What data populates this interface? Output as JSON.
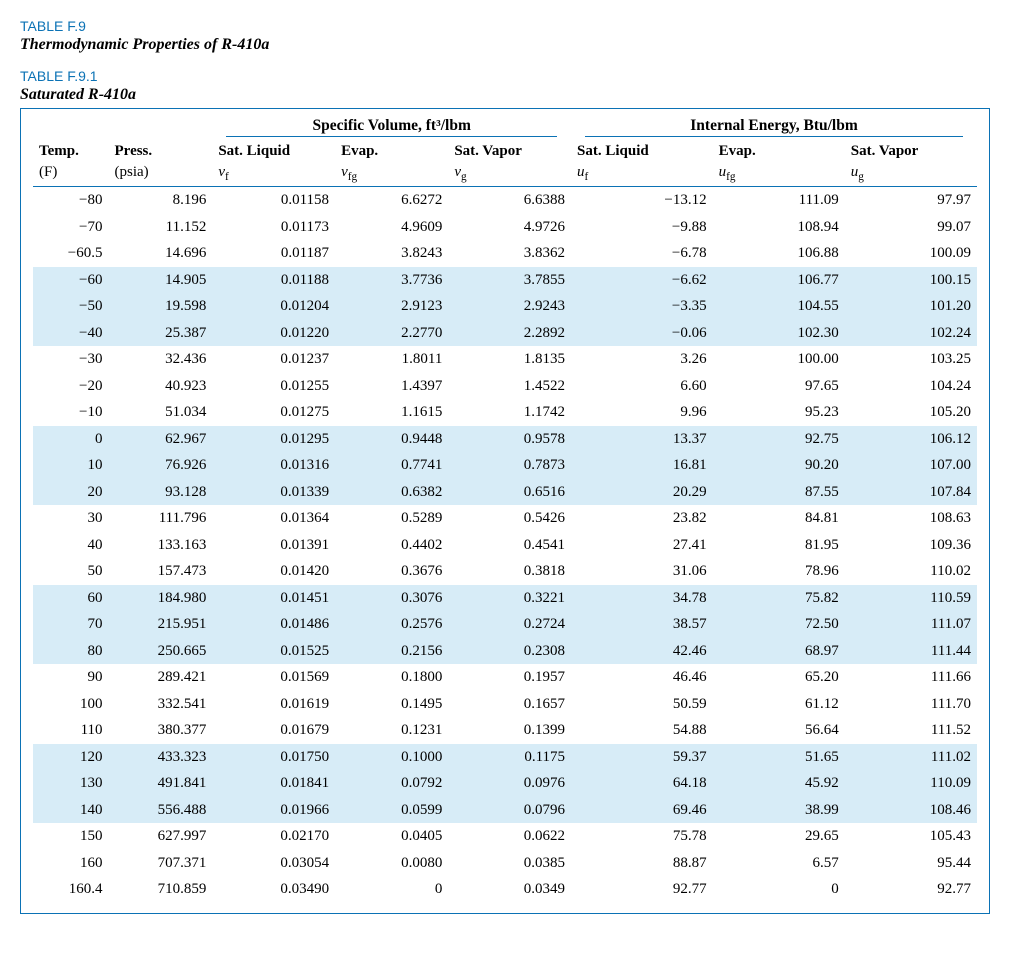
{
  "header": {
    "table_label": "TABLE F.9",
    "table_title": "Thermodynamic Properties of R-410a",
    "sub_label": "TABLE F.9.1",
    "sub_title": "Saturated R-410a"
  },
  "groups": {
    "sv": {
      "title": "Specific Volume, ft³/lbm"
    },
    "ie": {
      "title": "Internal Energy, Btu/lbm"
    }
  },
  "columns": {
    "temp": {
      "top": "Temp.",
      "bot": "(F)"
    },
    "press": {
      "top": "Press.",
      "bot": "(psia)"
    },
    "vf": {
      "top": "Sat. Liquid",
      "sym": "v",
      "sub": "f"
    },
    "vfg": {
      "top": "Evap.",
      "sym": "v",
      "sub": "fg"
    },
    "vg": {
      "top": "Sat. Vapor",
      "sym": "v",
      "sub": "g"
    },
    "uf": {
      "top": "Sat. Liquid",
      "sym": "u",
      "sub": "f"
    },
    "ufg": {
      "top": "Evap.",
      "sym": "u",
      "sub": "fg"
    },
    "ug": {
      "top": "Sat. Vapor",
      "sym": "u",
      "sub": "g"
    }
  },
  "style": {
    "accent": "#0b72b5",
    "band_bg": "#d7ecf7",
    "font_body_pt": 15,
    "font_header_pt": 15.5,
    "band_pattern": "every 3 rows alternating, starting row index 3"
  },
  "rows": [
    {
      "band": false,
      "temp": "−80",
      "press": "8.196",
      "vf": "0.01158",
      "vfg": "6.6272",
      "vg": "6.6388",
      "uf": "−13.12",
      "ufg": "111.09",
      "ug": "97.97"
    },
    {
      "band": false,
      "temp": "−70",
      "press": "11.152",
      "vf": "0.01173",
      "vfg": "4.9609",
      "vg": "4.9726",
      "uf": "−9.88",
      "ufg": "108.94",
      "ug": "99.07"
    },
    {
      "band": false,
      "temp": "−60.5",
      "press": "14.696",
      "vf": "0.01187",
      "vfg": "3.8243",
      "vg": "3.8362",
      "uf": "−6.78",
      "ufg": "106.88",
      "ug": "100.09"
    },
    {
      "band": true,
      "temp": "−60",
      "press": "14.905",
      "vf": "0.01188",
      "vfg": "3.7736",
      "vg": "3.7855",
      "uf": "−6.62",
      "ufg": "106.77",
      "ug": "100.15"
    },
    {
      "band": true,
      "temp": "−50",
      "press": "19.598",
      "vf": "0.01204",
      "vfg": "2.9123",
      "vg": "2.9243",
      "uf": "−3.35",
      "ufg": "104.55",
      "ug": "101.20"
    },
    {
      "band": true,
      "temp": "−40",
      "press": "25.387",
      "vf": "0.01220",
      "vfg": "2.2770",
      "vg": "2.2892",
      "uf": "−0.06",
      "ufg": "102.30",
      "ug": "102.24"
    },
    {
      "band": false,
      "temp": "−30",
      "press": "32.436",
      "vf": "0.01237",
      "vfg": "1.8011",
      "vg": "1.8135",
      "uf": "3.26",
      "ufg": "100.00",
      "ug": "103.25"
    },
    {
      "band": false,
      "temp": "−20",
      "press": "40.923",
      "vf": "0.01255",
      "vfg": "1.4397",
      "vg": "1.4522",
      "uf": "6.60",
      "ufg": "97.65",
      "ug": "104.24"
    },
    {
      "band": false,
      "temp": "−10",
      "press": "51.034",
      "vf": "0.01275",
      "vfg": "1.1615",
      "vg": "1.1742",
      "uf": "9.96",
      "ufg": "95.23",
      "ug": "105.20"
    },
    {
      "band": true,
      "temp": "0",
      "press": "62.967",
      "vf": "0.01295",
      "vfg": "0.9448",
      "vg": "0.9578",
      "uf": "13.37",
      "ufg": "92.75",
      "ug": "106.12"
    },
    {
      "band": true,
      "temp": "10",
      "press": "76.926",
      "vf": "0.01316",
      "vfg": "0.7741",
      "vg": "0.7873",
      "uf": "16.81",
      "ufg": "90.20",
      "ug": "107.00"
    },
    {
      "band": true,
      "temp": "20",
      "press": "93.128",
      "vf": "0.01339",
      "vfg": "0.6382",
      "vg": "0.6516",
      "uf": "20.29",
      "ufg": "87.55",
      "ug": "107.84"
    },
    {
      "band": false,
      "temp": "30",
      "press": "111.796",
      "vf": "0.01364",
      "vfg": "0.5289",
      "vg": "0.5426",
      "uf": "23.82",
      "ufg": "84.81",
      "ug": "108.63"
    },
    {
      "band": false,
      "temp": "40",
      "press": "133.163",
      "vf": "0.01391",
      "vfg": "0.4402",
      "vg": "0.4541",
      "uf": "27.41",
      "ufg": "81.95",
      "ug": "109.36"
    },
    {
      "band": false,
      "temp": "50",
      "press": "157.473",
      "vf": "0.01420",
      "vfg": "0.3676",
      "vg": "0.3818",
      "uf": "31.06",
      "ufg": "78.96",
      "ug": "110.02"
    },
    {
      "band": true,
      "temp": "60",
      "press": "184.980",
      "vf": "0.01451",
      "vfg": "0.3076",
      "vg": "0.3221",
      "uf": "34.78",
      "ufg": "75.82",
      "ug": "110.59"
    },
    {
      "band": true,
      "temp": "70",
      "press": "215.951",
      "vf": "0.01486",
      "vfg": "0.2576",
      "vg": "0.2724",
      "uf": "38.57",
      "ufg": "72.50",
      "ug": "111.07"
    },
    {
      "band": true,
      "temp": "80",
      "press": "250.665",
      "vf": "0.01525",
      "vfg": "0.2156",
      "vg": "0.2308",
      "uf": "42.46",
      "ufg": "68.97",
      "ug": "111.44"
    },
    {
      "band": false,
      "temp": "90",
      "press": "289.421",
      "vf": "0.01569",
      "vfg": "0.1800",
      "vg": "0.1957",
      "uf": "46.46",
      "ufg": "65.20",
      "ug": "111.66"
    },
    {
      "band": false,
      "temp": "100",
      "press": "332.541",
      "vf": "0.01619",
      "vfg": "0.1495",
      "vg": "0.1657",
      "uf": "50.59",
      "ufg": "61.12",
      "ug": "111.70"
    },
    {
      "band": false,
      "temp": "110",
      "press": "380.377",
      "vf": "0.01679",
      "vfg": "0.1231",
      "vg": "0.1399",
      "uf": "54.88",
      "ufg": "56.64",
      "ug": "111.52"
    },
    {
      "band": true,
      "temp": "120",
      "press": "433.323",
      "vf": "0.01750",
      "vfg": "0.1000",
      "vg": "0.1175",
      "uf": "59.37",
      "ufg": "51.65",
      "ug": "111.02"
    },
    {
      "band": true,
      "temp": "130",
      "press": "491.841",
      "vf": "0.01841",
      "vfg": "0.0792",
      "vg": "0.0976",
      "uf": "64.18",
      "ufg": "45.92",
      "ug": "110.09"
    },
    {
      "band": true,
      "temp": "140",
      "press": "556.488",
      "vf": "0.01966",
      "vfg": "0.0599",
      "vg": "0.0796",
      "uf": "69.46",
      "ufg": "38.99",
      "ug": "108.46"
    },
    {
      "band": false,
      "temp": "150",
      "press": "627.997",
      "vf": "0.02170",
      "vfg": "0.0405",
      "vg": "0.0622",
      "uf": "75.78",
      "ufg": "29.65",
      "ug": "105.43"
    },
    {
      "band": false,
      "temp": "160",
      "press": "707.371",
      "vf": "0.03054",
      "vfg": "0.0080",
      "vg": "0.0385",
      "uf": "88.87",
      "ufg": "6.57",
      "ug": "95.44"
    },
    {
      "band": false,
      "temp": "160.4",
      "press": "710.859",
      "vf": "0.03490",
      "vfg": "0",
      "vg": "0.0349",
      "uf": "92.77",
      "ufg": "0",
      "ug": "92.77"
    }
  ]
}
